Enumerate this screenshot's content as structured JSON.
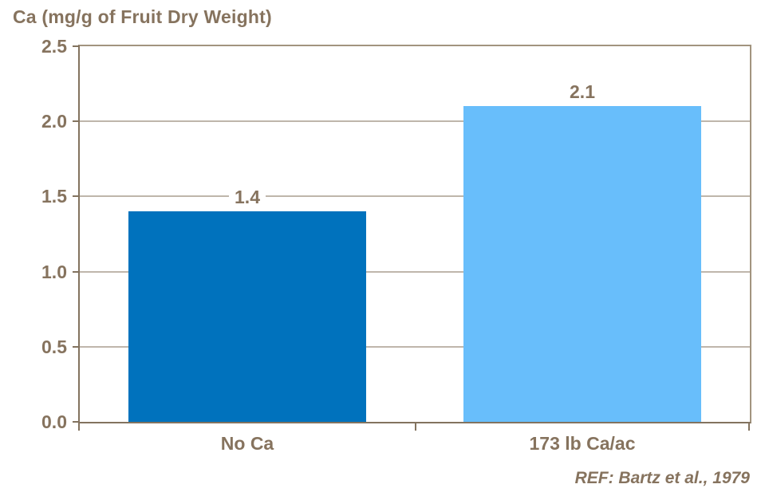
{
  "chart_data": {
    "type": "bar",
    "title": "Ca (mg/g of Fruit Dry Weight)",
    "categories": [
      "No Ca",
      "173 lb Ca/ac"
    ],
    "values": [
      1.4,
      2.1
    ],
    "value_labels": [
      "1.4",
      "2.1"
    ],
    "bar_colors": [
      "#0072BD",
      "#68BEFB"
    ],
    "ylim": [
      0,
      2.5
    ],
    "yticks": [
      0.0,
      0.5,
      1.0,
      1.5,
      2.0,
      2.5
    ],
    "ytick_labels": [
      "0.0",
      "0.5",
      "1.0",
      "1.5",
      "2.0",
      "2.5"
    ],
    "xlabel": "",
    "ylabel": "",
    "grid": true,
    "legend_position": "none",
    "annotation": "REF: Bartz et al., 1979"
  },
  "colors": {
    "text": "#86735E",
    "axis": "#83735F",
    "axis_light": "#A2947F",
    "gridline": "#BFB6AB",
    "background": "#FFFFFF"
  }
}
